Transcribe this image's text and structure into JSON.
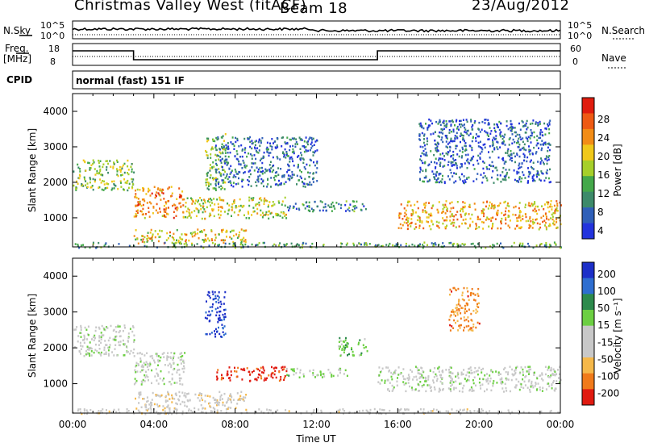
{
  "header": {
    "station": "Christmas Valley West (fitACF)",
    "beam": "Beam 18",
    "date": "23/Aug/2012"
  },
  "panels": {
    "nsky": {
      "label": "N.Sky",
      "right_label": "N.Search",
      "ticks": [
        "10^5",
        "10^0"
      ]
    },
    "freq": {
      "label_top": "Freq.",
      "label_bot": "[MHz]",
      "ticks_left": [
        "18",
        "8"
      ],
      "ticks_right": [
        "60",
        "0"
      ],
      "right_label": "Nave"
    },
    "cpid": {
      "label": "CPID",
      "value": "normal (fast) 151 IF"
    }
  },
  "colors": {
    "power": [
      "#2233dd",
      "#2f5fb8",
      "#3d8a6a",
      "#44a84a",
      "#a6cf2a",
      "#f0c81a",
      "#f28c16",
      "#ee5a14",
      "#e01c0e"
    ],
    "velocity": [
      "#1c2fc8",
      "#2e6ed0",
      "#2d8a4c",
      "#6ccf42",
      "#c8c8c8",
      "#c8c8c8",
      "#f5b84a",
      "#f07a1a",
      "#e01a10"
    ]
  },
  "chart_data": [
    {
      "type": "heatmap",
      "name": "power",
      "ylabel": "Slant Range [km]",
      "xlabel": "Time UT",
      "x_ticks": [
        "00:00",
        "04:00",
        "08:00",
        "12:00",
        "16:00",
        "20:00",
        "00:00"
      ],
      "y_ticks": [
        1000,
        2000,
        3000,
        4000
      ],
      "ylim": [
        180,
        4500
      ],
      "xlim_hours": [
        0,
        24
      ],
      "colorbar": {
        "label": "Power [dB]",
        "ticks": [
          "28",
          "24",
          "20",
          "16",
          "12",
          "8",
          "4"
        ],
        "range": [
          0,
          30
        ]
      },
      "regions": [
        {
          "t": [
            0.0,
            3.0
          ],
          "r": [
            1800,
            2650
          ],
          "v": 14
        },
        {
          "t": [
            3.0,
            5.5
          ],
          "r": [
            1000,
            1900
          ],
          "v": 22
        },
        {
          "t": [
            5.5,
            10.5
          ],
          "r": [
            1000,
            1600
          ],
          "v": 16
        },
        {
          "t": [
            10.5,
            14.5
          ],
          "r": [
            1200,
            1500
          ],
          "v": 8
        },
        {
          "t": [
            3.0,
            8.5
          ],
          "r": [
            300,
            700
          ],
          "v": 18
        },
        {
          "t": [
            6.5,
            7.5
          ],
          "r": [
            1800,
            3400
          ],
          "v": 12
        },
        {
          "t": [
            16.0,
            24.0
          ],
          "r": [
            700,
            1500
          ],
          "v": 20
        },
        {
          "t": [
            7.0,
            12.0
          ],
          "r": [
            1900,
            3300
          ],
          "v": 6
        },
        {
          "t": [
            17.0,
            23.5
          ],
          "r": [
            2000,
            3800
          ],
          "v": 5
        },
        {
          "t": [
            0.0,
            24.0
          ],
          "r": [
            180,
            330
          ],
          "v": 10
        }
      ]
    },
    {
      "type": "heatmap",
      "name": "velocity",
      "ylabel": "Slant Range [km]",
      "xlabel": "Time UT",
      "x_ticks": [
        "00:00",
        "04:00",
        "08:00",
        "12:00",
        "16:00",
        "20:00",
        "00:00"
      ],
      "y_ticks": [
        1000,
        2000,
        3000,
        4000
      ],
      "ylim": [
        180,
        4500
      ],
      "xlim_hours": [
        0,
        24
      ],
      "colorbar": {
        "label": "Velocity [m s⁻¹]",
        "ticks": [
          "200",
          "100",
          "50",
          "15",
          "-15",
          "-50",
          "-100",
          "-200"
        ],
        "range": [
          -250,
          250
        ]
      },
      "regions": [
        {
          "t": [
            0.0,
            3.0
          ],
          "r": [
            1800,
            2650
          ],
          "v": 0
        },
        {
          "t": [
            3.0,
            5.5
          ],
          "r": [
            1000,
            1900
          ],
          "v": 0
        },
        {
          "t": [
            7.0,
            10.5
          ],
          "r": [
            1100,
            1500
          ],
          "v": -220
        },
        {
          "t": [
            10.5,
            13.5
          ],
          "r": [
            1200,
            1450
          ],
          "v": 40
        },
        {
          "t": [
            6.5,
            7.5
          ],
          "r": [
            2300,
            3600
          ],
          "v": 210
        },
        {
          "t": [
            3.0,
            8.5
          ],
          "r": [
            300,
            800
          ],
          "v": -60
        },
        {
          "t": [
            15.0,
            24.0
          ],
          "r": [
            800,
            1500
          ],
          "v": 0
        },
        {
          "t": [
            0.0,
            24.0
          ],
          "r": [
            180,
            320
          ],
          "v": -40
        },
        {
          "t": [
            13.0,
            14.5
          ],
          "r": [
            1800,
            2300
          ],
          "v": 60
        },
        {
          "t": [
            18.5,
            20.0
          ],
          "r": [
            2500,
            3700
          ],
          "v": -150
        }
      ]
    }
  ]
}
